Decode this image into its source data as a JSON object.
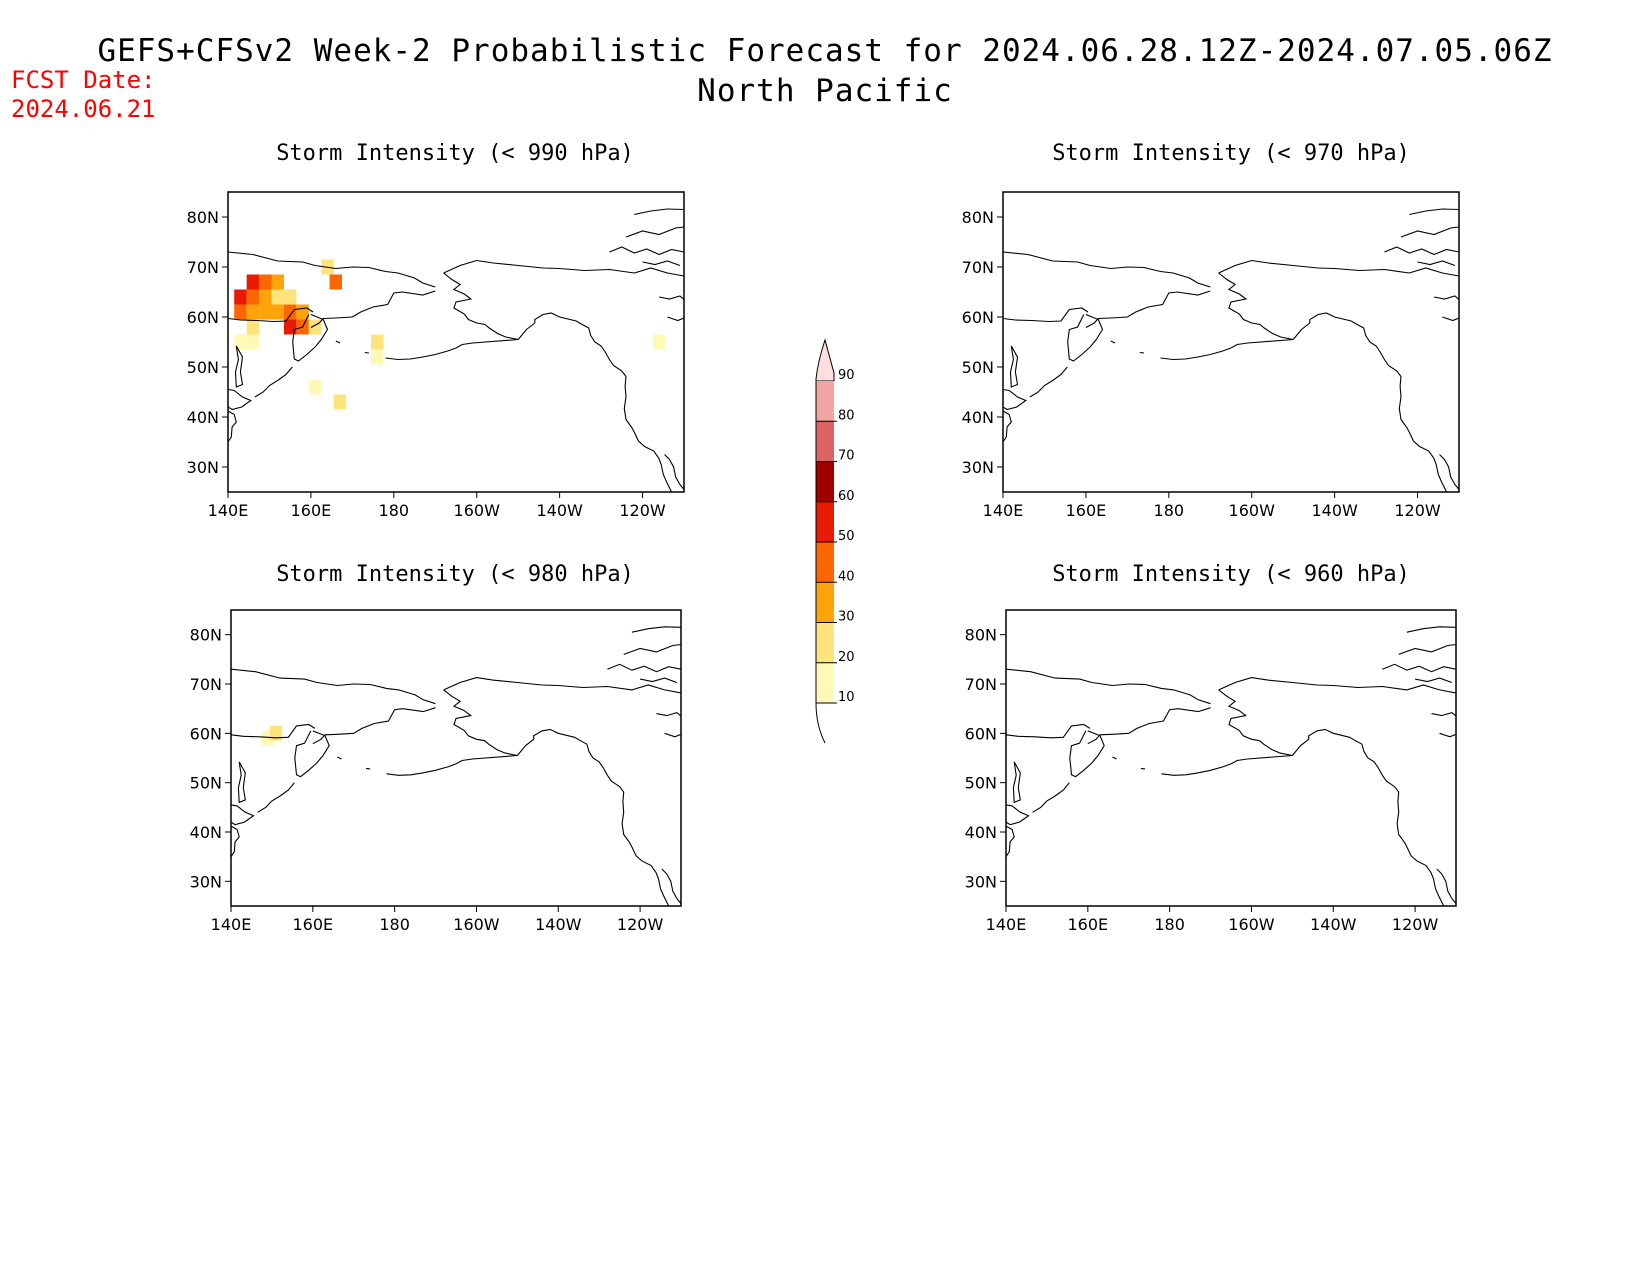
{
  "header": {
    "fcst_label": "FCST Date:",
    "fcst_date": "2024.06.21",
    "title": "GEFS+CFSv2 Week-2 Probabilistic Forecast for 2024.06.28.12Z-2024.07.05.06Z",
    "subtitle": "North Pacific"
  },
  "axes": {
    "lat_ticks": [
      "80N",
      "70N",
      "60N",
      "50N",
      "40N",
      "30N"
    ],
    "lon_ticks": [
      "140E",
      "160E",
      "180",
      "160W",
      "140W",
      "120W"
    ]
  },
  "panels": [
    {
      "id": "p990",
      "title": "Storm Intensity (< 990 hPa)",
      "cells": [
        {
          "lon": 146,
          "lat": 67,
          "p": 50
        },
        {
          "lon": 149,
          "lat": 67,
          "p": 40
        },
        {
          "lon": 152,
          "lat": 67,
          "p": 30
        },
        {
          "lon": 143,
          "lat": 64,
          "p": 50
        },
        {
          "lon": 146,
          "lat": 64,
          "p": 40
        },
        {
          "lon": 149,
          "lat": 64,
          "p": 30
        },
        {
          "lon": 152,
          "lat": 64,
          "p": 20
        },
        {
          "lon": 155,
          "lat": 64,
          "p": 20
        },
        {
          "lon": 143,
          "lat": 61,
          "p": 40
        },
        {
          "lon": 146,
          "lat": 61,
          "p": 30
        },
        {
          "lon": 149,
          "lat": 61,
          "p": 30
        },
        {
          "lon": 152,
          "lat": 61,
          "p": 30
        },
        {
          "lon": 155,
          "lat": 61,
          "p": 40
        },
        {
          "lon": 158,
          "lat": 61,
          "p": 30
        },
        {
          "lon": 146,
          "lat": 58,
          "p": 20
        },
        {
          "lon": 155,
          "lat": 58,
          "p": 50
        },
        {
          "lon": 158,
          "lat": 58,
          "p": 40
        },
        {
          "lon": 161,
          "lat": 58,
          "p": 20
        },
        {
          "lon": 143,
          "lat": 55,
          "p": 10
        },
        {
          "lon": 146,
          "lat": 55,
          "p": 10
        },
        {
          "lon": 164,
          "lat": 70,
          "p": 20
        },
        {
          "lon": 166,
          "lat": 67,
          "p": 40
        },
        {
          "lon": 176,
          "lat": 55,
          "p": 20
        },
        {
          "lon": 176,
          "lat": 52,
          "p": 10
        },
        {
          "lon": 161,
          "lat": 46,
          "p": 10
        },
        {
          "lon": 167,
          "lat": 43,
          "p": 20
        },
        {
          "lon": 244,
          "lat": 55,
          "p": 10
        }
      ]
    },
    {
      "id": "p970",
      "title": "Storm Intensity (< 970 hPa)",
      "cells": []
    },
    {
      "id": "p980",
      "title": "Storm Intensity (< 980 hPa)",
      "cells": [
        {
          "lon": 149,
          "lat": 59,
          "p": 10
        },
        {
          "lon": 151,
          "lat": 60,
          "p": 20
        }
      ]
    },
    {
      "id": "p960",
      "title": "Storm Intensity (< 960 hPa)",
      "cells": []
    }
  ],
  "colorbar": {
    "levels": [
      "10",
      "20",
      "30",
      "40",
      "50",
      "60",
      "70",
      "80",
      "90"
    ],
    "colors": [
      "#fff9b8",
      "#ffe47d",
      "#ffa30a",
      "#ff6600",
      "#e81a00",
      "#a10000",
      "#dc6464",
      "#f4a3a3",
      "#ffdede"
    ]
  }
}
